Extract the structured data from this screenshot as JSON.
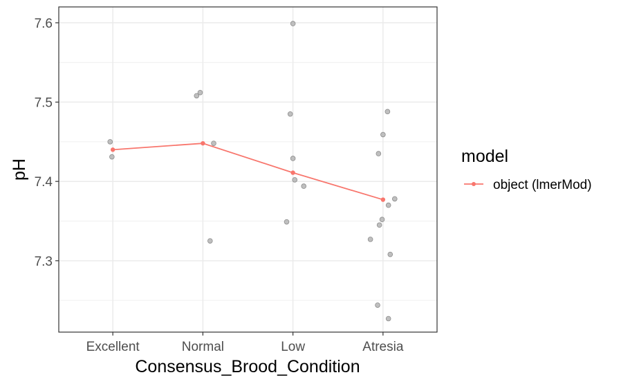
{
  "chart_data": {
    "type": "line",
    "title": "",
    "xlabel": "Consensus_Brood_Condition",
    "ylabel": "pH",
    "categories": [
      "Excellent",
      "Normal",
      "Low",
      "Atresia"
    ],
    "ylim": [
      7.21,
      7.62
    ],
    "yticks": [
      7.3,
      7.4,
      7.5,
      7.6
    ],
    "grid": true,
    "legend": {
      "title": "model",
      "position": "right",
      "entries": [
        "object (lmerMod)"
      ]
    },
    "colors": {
      "series": "#f8766d",
      "points": "#bfbfbf",
      "points_stroke": "#8c8c8c",
      "grid": "#ebebeb",
      "panel_border": "#333333"
    },
    "series": [
      {
        "name": "object (lmerMod)",
        "values": [
          7.44,
          7.448,
          7.411,
          7.377
        ]
      }
    ],
    "raw_points": [
      {
        "x": 0.97,
        "y": 7.45
      },
      {
        "x": 0.99,
        "y": 7.431
      },
      {
        "x": 1.93,
        "y": 7.508
      },
      {
        "x": 1.97,
        "y": 7.512
      },
      {
        "x": 2.12,
        "y": 7.448
      },
      {
        "x": 2.08,
        "y": 7.325
      },
      {
        "x": 2.93,
        "y": 7.349
      },
      {
        "x": 2.97,
        "y": 7.485
      },
      {
        "x": 3.0,
        "y": 7.429
      },
      {
        "x": 3.02,
        "y": 7.402
      },
      {
        "x": 3.12,
        "y": 7.394
      },
      {
        "x": 3.0,
        "y": 7.599
      },
      {
        "x": 4.05,
        "y": 7.488
      },
      {
        "x": 4.0,
        "y": 7.459
      },
      {
        "x": 3.95,
        "y": 7.435
      },
      {
        "x": 4.13,
        "y": 7.378
      },
      {
        "x": 4.06,
        "y": 7.37
      },
      {
        "x": 3.99,
        "y": 7.352
      },
      {
        "x": 3.96,
        "y": 7.345
      },
      {
        "x": 3.86,
        "y": 7.327
      },
      {
        "x": 4.08,
        "y": 7.308
      },
      {
        "x": 3.94,
        "y": 7.244
      },
      {
        "x": 4.06,
        "y": 7.227
      }
    ]
  }
}
